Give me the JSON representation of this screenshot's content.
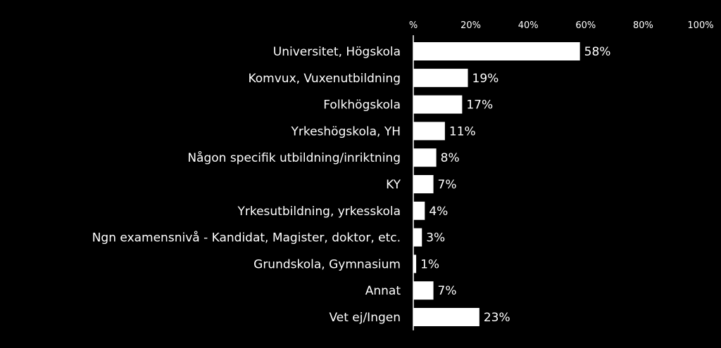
{
  "chart_data": {
    "type": "bar",
    "orientation": "horizontal",
    "categories": [
      "Universitet, Högskola",
      "Komvux, Vuxenutbildning",
      "Folkhögskola",
      "Yrkeshögskola, YH",
      "Någon specifik utbildning/inriktning",
      "KY",
      "Yrkesutbildning, yrkesskola",
      "Ngn examensnivå - Kandidat, Magister, doktor, etc.",
      "Grundskola, Gymnasium",
      "Annat",
      "Vet ej/Ingen"
    ],
    "values": [
      58,
      19,
      17,
      11,
      8,
      7,
      4,
      3,
      1,
      7,
      23
    ],
    "value_labels": [
      "58%",
      "19%",
      "17%",
      "11%",
      "8%",
      "7%",
      "4%",
      "3%",
      "1%",
      "7%",
      "23%"
    ],
    "xlim": [
      0,
      100
    ],
    "x_ticks": [
      0,
      20,
      40,
      60,
      80,
      100
    ],
    "x_tick_labels": [
      "%",
      "20%",
      "40%",
      "60%",
      "80%",
      "100%"
    ],
    "x_axis_position": "top",
    "grid": false,
    "legend": "none",
    "colors": {
      "background": "#000000",
      "bar": "#ffffff",
      "text": "#ffffff"
    }
  }
}
